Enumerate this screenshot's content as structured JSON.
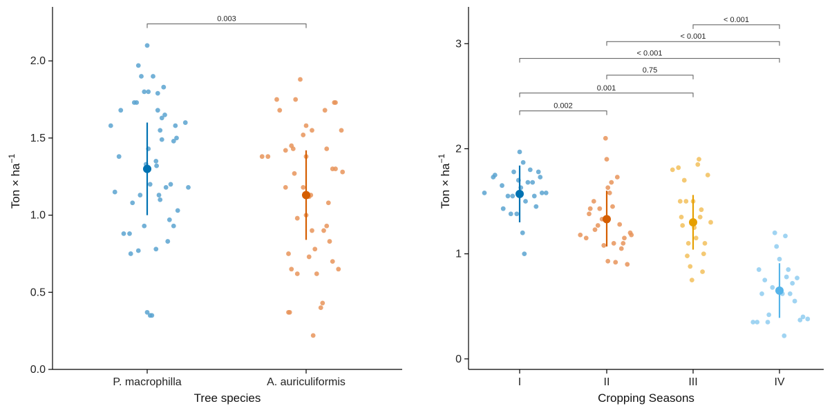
{
  "chart_data": [
    {
      "type": "scatter",
      "subtype": "jitter-with-mean-and-error",
      "title": "",
      "xlabel": "Tree species",
      "ylabel_main": "Ton × ha",
      "ylabel_sup": "−1",
      "ylim": [
        0,
        2.35
      ],
      "yticks": [
        "0.0",
        "0.5",
        "1.0",
        "1.5",
        "2.0"
      ],
      "ytick_values": [
        0,
        0.5,
        1.0,
        1.5,
        2.0
      ],
      "grid": false,
      "categories": [
        "P. macrophilla",
        "A. auriculiformis"
      ],
      "colors": [
        "#0072B2",
        "#D55E00"
      ],
      "point_colors": [
        "#5BA3D0",
        "#E8945A"
      ],
      "series": [
        {
          "category": "P. macrophilla",
          "mean": 1.3,
          "lower": 1.0,
          "upper": 1.6,
          "points": [
            {
              "j": -0.62,
              "y": 1.58
            },
            {
              "j": -0.45,
              "y": 1.68
            },
            {
              "j": -0.55,
              "y": 1.15
            },
            {
              "j": -0.48,
              "y": 1.38
            },
            {
              "j": -0.4,
              "y": 0.88
            },
            {
              "j": -0.3,
              "y": 0.88
            },
            {
              "j": -0.28,
              "y": 0.75
            },
            {
              "j": -0.22,
              "y": 1.73
            },
            {
              "j": -0.18,
              "y": 1.73
            },
            {
              "j": -0.25,
              "y": 1.08
            },
            {
              "j": -0.15,
              "y": 1.97
            },
            {
              "j": -0.1,
              "y": 1.9
            },
            {
              "j": -0.12,
              "y": 1.13
            },
            {
              "j": -0.15,
              "y": 0.77
            },
            {
              "j": -0.05,
              "y": 1.8
            },
            {
              "j": -0.05,
              "y": 0.93
            },
            {
              "j": -0.02,
              "y": 1.33
            },
            {
              "j": 0.0,
              "y": 2.1
            },
            {
              "j": 0.02,
              "y": 1.8
            },
            {
              "j": 0.02,
              "y": 1.43
            },
            {
              "j": 0.0,
              "y": 0.37
            },
            {
              "j": 0.05,
              "y": 0.35
            },
            {
              "j": 0.05,
              "y": 1.2
            },
            {
              "j": 0.08,
              "y": 0.35
            },
            {
              "j": 0.1,
              "y": 1.9
            },
            {
              "j": 0.15,
              "y": 1.35
            },
            {
              "j": 0.15,
              "y": 0.78
            },
            {
              "j": 0.16,
              "y": 1.32
            },
            {
              "j": 0.18,
              "y": 1.79
            },
            {
              "j": 0.18,
              "y": 1.68
            },
            {
              "j": 0.2,
              "y": 1.13
            },
            {
              "j": 0.22,
              "y": 1.1
            },
            {
              "j": 0.22,
              "y": 1.55
            },
            {
              "j": 0.25,
              "y": 1.49
            },
            {
              "j": 0.28,
              "y": 1.83
            },
            {
              "j": 0.3,
              "y": 1.65
            },
            {
              "j": 0.32,
              "y": 1.18
            },
            {
              "j": 0.35,
              "y": 0.83
            },
            {
              "j": 0.4,
              "y": 1.2
            },
            {
              "j": 0.38,
              "y": 0.97
            },
            {
              "j": 0.45,
              "y": 1.48
            },
            {
              "j": 0.45,
              "y": 0.93
            },
            {
              "j": 0.48,
              "y": 1.58
            },
            {
              "j": 0.5,
              "y": 1.5
            },
            {
              "j": 0.52,
              "y": 1.03
            },
            {
              "j": 0.65,
              "y": 1.6
            },
            {
              "j": 0.7,
              "y": 1.18
            },
            {
              "j": 0.25,
              "y": 1.63
            }
          ]
        },
        {
          "category": "A. auriculiformis",
          "mean": 1.13,
          "lower": 0.84,
          "upper": 1.42,
          "points": [
            {
              "j": -0.75,
              "y": 1.38
            },
            {
              "j": -0.65,
              "y": 1.38
            },
            {
              "j": -0.5,
              "y": 1.75
            },
            {
              "j": -0.45,
              "y": 1.68
            },
            {
              "j": -0.35,
              "y": 1.18
            },
            {
              "j": -0.35,
              "y": 1.42
            },
            {
              "j": -0.3,
              "y": 0.75
            },
            {
              "j": -0.3,
              "y": 0.37
            },
            {
              "j": -0.28,
              "y": 0.37
            },
            {
              "j": -0.25,
              "y": 1.45
            },
            {
              "j": -0.25,
              "y": 0.65
            },
            {
              "j": -0.22,
              "y": 1.43
            },
            {
              "j": -0.2,
              "y": 1.27
            },
            {
              "j": -0.18,
              "y": 1.75
            },
            {
              "j": -0.15,
              "y": 0.62
            },
            {
              "j": -0.15,
              "y": 0.98
            },
            {
              "j": -0.1,
              "y": 1.88
            },
            {
              "j": -0.05,
              "y": 1.52
            },
            {
              "j": -0.05,
              "y": 1.18
            },
            {
              "j": 0.0,
              "y": 1.58
            },
            {
              "j": 0.0,
              "y": 1.38
            },
            {
              "j": 0.0,
              "y": 1.0
            },
            {
              "j": 0.05,
              "y": 0.73
            },
            {
              "j": 0.05,
              "y": 1.12
            },
            {
              "j": 0.08,
              "y": 1.13
            },
            {
              "j": 0.1,
              "y": 1.55
            },
            {
              "j": 0.1,
              "y": 0.9
            },
            {
              "j": 0.12,
              "y": 0.22
            },
            {
              "j": 0.15,
              "y": 0.78
            },
            {
              "j": 0.18,
              "y": 0.62
            },
            {
              "j": 0.25,
              "y": 0.4
            },
            {
              "j": 0.28,
              "y": 0.43
            },
            {
              "j": 0.3,
              "y": 0.9
            },
            {
              "j": 0.32,
              "y": 1.68
            },
            {
              "j": 0.35,
              "y": 1.43
            },
            {
              "j": 0.35,
              "y": 0.93
            },
            {
              "j": 0.38,
              "y": 1.08
            },
            {
              "j": 0.4,
              "y": 0.83
            },
            {
              "j": 0.45,
              "y": 1.3
            },
            {
              "j": 0.48,
              "y": 1.73
            },
            {
              "j": 0.5,
              "y": 1.73
            },
            {
              "j": 0.5,
              "y": 1.3
            },
            {
              "j": 0.55,
              "y": 0.65
            },
            {
              "j": 0.6,
              "y": 1.55
            },
            {
              "j": 0.62,
              "y": 1.28
            },
            {
              "j": 0.45,
              "y": 0.7
            }
          ]
        }
      ],
      "comparisons": [
        {
          "from": 0,
          "to": 1,
          "label": "0.003",
          "level": 2.24
        }
      ]
    },
    {
      "type": "scatter",
      "subtype": "jitter-with-mean-and-error",
      "title": "",
      "xlabel": "Cropping Seasons",
      "ylabel_main": "Ton × ha",
      "ylabel_sup": "−1",
      "ylim": [
        -0.1,
        3.35
      ],
      "yticks": [
        "0",
        "1",
        "2",
        "3"
      ],
      "ytick_values": [
        0,
        1,
        2,
        3
      ],
      "grid": false,
      "categories": [
        "I",
        "II",
        "III",
        "IV"
      ],
      "colors": [
        "#0072B2",
        "#D55E00",
        "#E69F00",
        "#56B4E9"
      ],
      "point_colors": [
        "#5BA3D0",
        "#E8945A",
        "#F2C05C",
        "#8FCCF0"
      ],
      "series": [
        {
          "category": "I",
          "mean": 1.57,
          "lower": 1.3,
          "upper": 1.84,
          "points": [
            {
              "j": -0.6,
              "y": 1.58
            },
            {
              "j": -0.45,
              "y": 1.73
            },
            {
              "j": -0.42,
              "y": 1.75
            },
            {
              "j": -0.3,
              "y": 1.65
            },
            {
              "j": -0.28,
              "y": 1.43
            },
            {
              "j": -0.2,
              "y": 1.55
            },
            {
              "j": -0.15,
              "y": 1.38
            },
            {
              "j": -0.12,
              "y": 1.55
            },
            {
              "j": -0.1,
              "y": 1.78
            },
            {
              "j": -0.05,
              "y": 1.38
            },
            {
              "j": -0.02,
              "y": 1.7
            },
            {
              "j": 0.0,
              "y": 1.97
            },
            {
              "j": 0.02,
              "y": 1.63
            },
            {
              "j": 0.05,
              "y": 1.2
            },
            {
              "j": 0.06,
              "y": 1.87
            },
            {
              "j": 0.08,
              "y": 1.0
            },
            {
              "j": 0.1,
              "y": 1.5
            },
            {
              "j": 0.14,
              "y": 1.68
            },
            {
              "j": 0.18,
              "y": 1.8
            },
            {
              "j": 0.22,
              "y": 1.68
            },
            {
              "j": 0.25,
              "y": 1.55
            },
            {
              "j": 0.28,
              "y": 1.45
            },
            {
              "j": 0.32,
              "y": 1.78
            },
            {
              "j": 0.35,
              "y": 1.73
            },
            {
              "j": 0.38,
              "y": 1.58
            },
            {
              "j": 0.45,
              "y": 1.58
            }
          ]
        },
        {
          "category": "II",
          "mean": 1.33,
          "lower": 1.07,
          "upper": 1.6,
          "points": [
            {
              "j": -0.45,
              "y": 1.18
            },
            {
              "j": -0.35,
              "y": 1.15
            },
            {
              "j": -0.3,
              "y": 1.38
            },
            {
              "j": -0.28,
              "y": 1.43
            },
            {
              "j": -0.22,
              "y": 1.5
            },
            {
              "j": -0.2,
              "y": 1.23
            },
            {
              "j": -0.15,
              "y": 1.27
            },
            {
              "j": -0.12,
              "y": 1.43
            },
            {
              "j": -0.08,
              "y": 1.33
            },
            {
              "j": -0.05,
              "y": 1.08
            },
            {
              "j": -0.02,
              "y": 2.1
            },
            {
              "j": 0.0,
              "y": 1.9
            },
            {
              "j": 0.02,
              "y": 1.63
            },
            {
              "j": 0.02,
              "y": 0.93
            },
            {
              "j": 0.05,
              "y": 1.58
            },
            {
              "j": 0.08,
              "y": 1.68
            },
            {
              "j": 0.1,
              "y": 1.45
            },
            {
              "j": 0.12,
              "y": 1.1
            },
            {
              "j": 0.15,
              "y": 0.92
            },
            {
              "j": 0.18,
              "y": 1.73
            },
            {
              "j": 0.22,
              "y": 1.28
            },
            {
              "j": 0.25,
              "y": 1.05
            },
            {
              "j": 0.28,
              "y": 1.1
            },
            {
              "j": 0.3,
              "y": 1.15
            },
            {
              "j": 0.35,
              "y": 0.9
            },
            {
              "j": 0.4,
              "y": 1.2
            },
            {
              "j": 0.42,
              "y": 1.18
            }
          ]
        },
        {
          "category": "III",
          "mean": 1.3,
          "lower": 1.04,
          "upper": 1.56,
          "points": [
            {
              "j": -0.35,
              "y": 1.8
            },
            {
              "j": -0.25,
              "y": 1.82
            },
            {
              "j": -0.22,
              "y": 1.5
            },
            {
              "j": -0.2,
              "y": 1.35
            },
            {
              "j": -0.18,
              "y": 1.27
            },
            {
              "j": -0.15,
              "y": 1.7
            },
            {
              "j": -0.12,
              "y": 1.5
            },
            {
              "j": -0.1,
              "y": 0.98
            },
            {
              "j": -0.08,
              "y": 1.1
            },
            {
              "j": -0.05,
              "y": 0.88
            },
            {
              "j": -0.02,
              "y": 0.75
            },
            {
              "j": 0.0,
              "y": 1.5
            },
            {
              "j": 0.02,
              "y": 1.25
            },
            {
              "j": 0.05,
              "y": 1.15
            },
            {
              "j": 0.08,
              "y": 1.85
            },
            {
              "j": 0.1,
              "y": 1.9
            },
            {
              "j": 0.12,
              "y": 1.35
            },
            {
              "j": 0.14,
              "y": 1.42
            },
            {
              "j": 0.16,
              "y": 0.83
            },
            {
              "j": 0.18,
              "y": 1.0
            },
            {
              "j": 0.2,
              "y": 1.1
            },
            {
              "j": 0.25,
              "y": 1.75
            },
            {
              "j": 0.3,
              "y": 1.3
            }
          ]
        },
        {
          "category": "IV",
          "mean": 0.65,
          "lower": 0.39,
          "upper": 0.91,
          "points": [
            {
              "j": -0.45,
              "y": 0.35
            },
            {
              "j": -0.38,
              "y": 0.35
            },
            {
              "j": -0.35,
              "y": 0.85
            },
            {
              "j": -0.3,
              "y": 0.62
            },
            {
              "j": -0.25,
              "y": 0.75
            },
            {
              "j": -0.2,
              "y": 0.35
            },
            {
              "j": -0.18,
              "y": 0.42
            },
            {
              "j": -0.12,
              "y": 0.68
            },
            {
              "j": -0.08,
              "y": 1.2
            },
            {
              "j": -0.05,
              "y": 1.07
            },
            {
              "j": 0.0,
              "y": 0.95
            },
            {
              "j": 0.05,
              "y": 0.62
            },
            {
              "j": 0.08,
              "y": 0.22
            },
            {
              "j": 0.1,
              "y": 1.17
            },
            {
              "j": 0.12,
              "y": 0.78
            },
            {
              "j": 0.15,
              "y": 0.85
            },
            {
              "j": 0.18,
              "y": 0.62
            },
            {
              "j": 0.22,
              "y": 0.72
            },
            {
              "j": 0.26,
              "y": 0.55
            },
            {
              "j": 0.3,
              "y": 0.77
            },
            {
              "j": 0.35,
              "y": 0.37
            },
            {
              "j": 0.4,
              "y": 0.4
            },
            {
              "j": 0.48,
              "y": 0.38
            }
          ]
        }
      ],
      "comparisons": [
        {
          "from": 2,
          "to": 3,
          "label": "< 0.001",
          "level": 3.18
        },
        {
          "from": 1,
          "to": 3,
          "label": "< 0.001",
          "level": 3.02
        },
        {
          "from": 0,
          "to": 3,
          "label": "< 0.001",
          "level": 2.86
        },
        {
          "from": 1,
          "to": 2,
          "label": "0.75",
          "level": 2.7
        },
        {
          "from": 0,
          "to": 2,
          "label": "0.001",
          "level": 2.53
        },
        {
          "from": 0,
          "to": 1,
          "label": "0.002",
          "level": 2.36
        }
      ]
    }
  ]
}
